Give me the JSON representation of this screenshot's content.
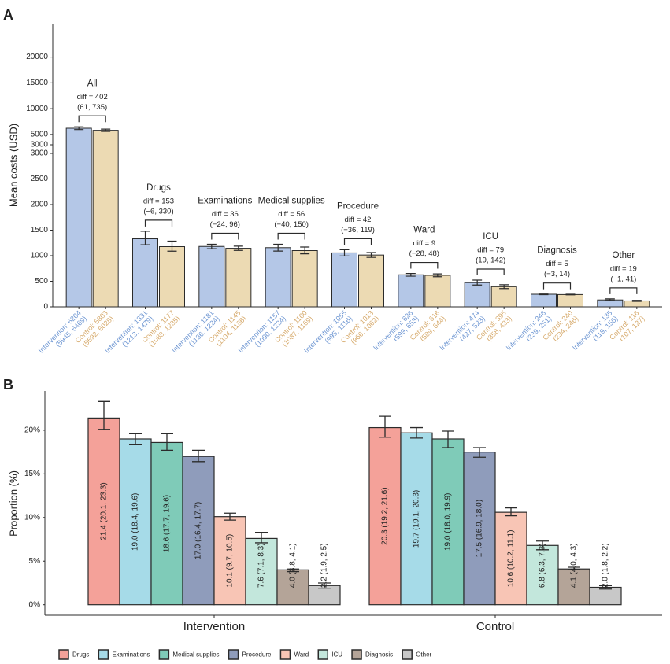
{
  "chart_data": [
    {
      "type": "bar",
      "panel": "A",
      "ylabel": "Mean costs (USD)",
      "categories": [
        "All",
        "Drugs",
        "Examinations",
        "Medical supplies",
        "Procedure",
        "Ward",
        "ICU",
        "Diagnosis",
        "Other"
      ],
      "diff_labels": [
        "diff = 402",
        "diff = 153",
        "diff = 36",
        "diff = 56",
        "diff = 42",
        "diff = 9",
        "diff = 79",
        "diff = 5",
        "diff = 19"
      ],
      "diff_ci_labels": [
        "(61, 735)",
        "(−6, 330)",
        "(−24, 96)",
        "(−40, 150)",
        "(−36, 119)",
        "(−28, 48)",
        "(19, 142)",
        "(−3, 14)",
        "(−1, 41)"
      ],
      "series": [
        {
          "color": "#b4c7e7",
          "label_color": "#6c95d2",
          "values": [
            6204,
            1331,
            1181,
            1157,
            1055,
            626,
            474,
            246,
            135
          ],
          "ci_low": [
            5945,
            1213,
            1136,
            1090,
            995,
            599,
            427,
            239,
            119
          ],
          "ci_high": [
            6469,
            1479,
            1224,
            1224,
            1116,
            653,
            523,
            251,
            156
          ],
          "tick_labels": [
            [
              "Intervention: 6204",
              "(5945, 6469)"
            ],
            [
              "Intervention: 1331",
              "(1213, 1479)"
            ],
            [
              "Intervention: 1181",
              "(1136, 1224)"
            ],
            [
              "Intervention: 1157",
              "(1090, 1224)"
            ],
            [
              "Intervention: 1055",
              "(995, 1116)"
            ],
            [
              "Intervention: 626",
              "(599, 653)"
            ],
            [
              "Intervention: 474",
              "(427, 523)"
            ],
            [
              "Intervention: 246",
              "(239, 251)"
            ],
            [
              "Intervention: 135",
              "(119, 156)"
            ]
          ]
        },
        {
          "color": "#ecdab3",
          "label_color": "#d6a96a",
          "values": [
            5803,
            1177,
            1145,
            1100,
            1013,
            616,
            395,
            240,
            116
          ],
          "ci_low": [
            5592,
            1088,
            1104,
            1037,
            966,
            589,
            358,
            234,
            107
          ],
          "ci_high": [
            6028,
            1285,
            1186,
            1169,
            1062,
            644,
            433,
            246,
            127
          ],
          "tick_labels": [
            [
              "Control: 5803",
              "(5592, 6028)"
            ],
            [
              "Control: 1177",
              "(1088, 1285)"
            ],
            [
              "Control: 1145",
              "(1104, 1186)"
            ],
            [
              "Control: 1100",
              "(1037, 1169)"
            ],
            [
              "Control: 1013",
              "(966, 1062)"
            ],
            [
              "Control: 616",
              "(589, 644)"
            ],
            [
              "Control: 395",
              "(358, 433)"
            ],
            [
              "Control: 240",
              "(234, 246)"
            ],
            [
              "Control: 116",
              "(107, 127)"
            ]
          ]
        }
      ],
      "y_segments": [
        {
          "ylim": [
            0,
            3000
          ],
          "yticks": [
            0,
            500,
            1000,
            1500,
            2000,
            2500,
            3000
          ]
        },
        {
          "ylim": [
            3000,
            26500
          ],
          "yticks": [
            3000,
            5000,
            10000,
            15000,
            20000
          ]
        }
      ]
    },
    {
      "type": "grouped_bar",
      "panel": "B",
      "ylabel": "Proportion (%)",
      "categories": [
        "Intervention",
        "Control"
      ],
      "ylim": [
        -1.2,
        24.5
      ],
      "yticks": [
        {
          "value": 0,
          "label": "0%"
        },
        {
          "value": 5,
          "label": "5%"
        },
        {
          "value": 10,
          "label": "10%"
        },
        {
          "value": 15,
          "label": "15%"
        },
        {
          "value": 20,
          "label": "20%"
        }
      ],
      "series": [
        {
          "name": "Drugs",
          "color": "#f4a199",
          "values": [
            21.4,
            20.3
          ],
          "ci_low": [
            20.1,
            19.2
          ],
          "ci_high": [
            23.3,
            21.6
          ],
          "value_labels": [
            "21.4 (20.1, 23.3)",
            "20.3 (19.2, 21.6)"
          ]
        },
        {
          "name": "Examinations",
          "color": "#a6dbe8",
          "values": [
            19.0,
            19.7
          ],
          "ci_low": [
            18.4,
            19.1
          ],
          "ci_high": [
            19.6,
            20.3
          ],
          "value_labels": [
            "19.0 (18.4, 19.6)",
            "19.7 (19.1, 20.3)"
          ]
        },
        {
          "name": "Medical supplies",
          "color": "#7fcbb8",
          "values": [
            18.6,
            19.0
          ],
          "ci_low": [
            17.7,
            18.0
          ],
          "ci_high": [
            19.6,
            19.9
          ],
          "value_labels": [
            "18.6 (17.7, 19.6)",
            "19.0 (18.0, 19.9)"
          ]
        },
        {
          "name": "Procedure",
          "color": "#8f9cbb",
          "values": [
            17.0,
            17.5
          ],
          "ci_low": [
            16.4,
            16.9
          ],
          "ci_high": [
            17.7,
            18.0
          ],
          "value_labels": [
            "17.0 (16.4, 17.7)",
            "17.5 (16.9, 18.0)"
          ]
        },
        {
          "name": "Ward",
          "color": "#f8c5b5",
          "values": [
            10.1,
            10.6
          ],
          "ci_low": [
            9.7,
            10.2
          ],
          "ci_high": [
            10.5,
            11.1
          ],
          "value_labels": [
            "10.1 (9.7, 10.5)",
            "10.6 (10.2, 11.1)"
          ]
        },
        {
          "name": "ICU",
          "color": "#c3e7dc",
          "values": [
            7.6,
            6.8
          ],
          "ci_low": [
            7.1,
            6.3
          ],
          "ci_high": [
            8.3,
            7.3
          ],
          "value_labels": [
            "7.6 (7.1, 8.3)",
            "6.8 (6.3, 7.3)"
          ]
        },
        {
          "name": "Diagnosis",
          "color": "#b4a498",
          "values": [
            4.0,
            4.1
          ],
          "ci_low": [
            3.8,
            4.0
          ],
          "ci_high": [
            4.1,
            4.3
          ],
          "value_labels": [
            "4.0 (3.8, 4.1)",
            "4.1 (4.0, 4.3)"
          ]
        },
        {
          "name": "Other",
          "color": "#c8c8c8",
          "values": [
            2.2,
            2.0
          ],
          "ci_low": [
            1.9,
            1.8
          ],
          "ci_high": [
            2.5,
            2.2
          ],
          "value_labels": [
            "2.2 (1.9, 2.5)",
            "2.0 (1.8, 2.2)"
          ]
        }
      ]
    }
  ]
}
